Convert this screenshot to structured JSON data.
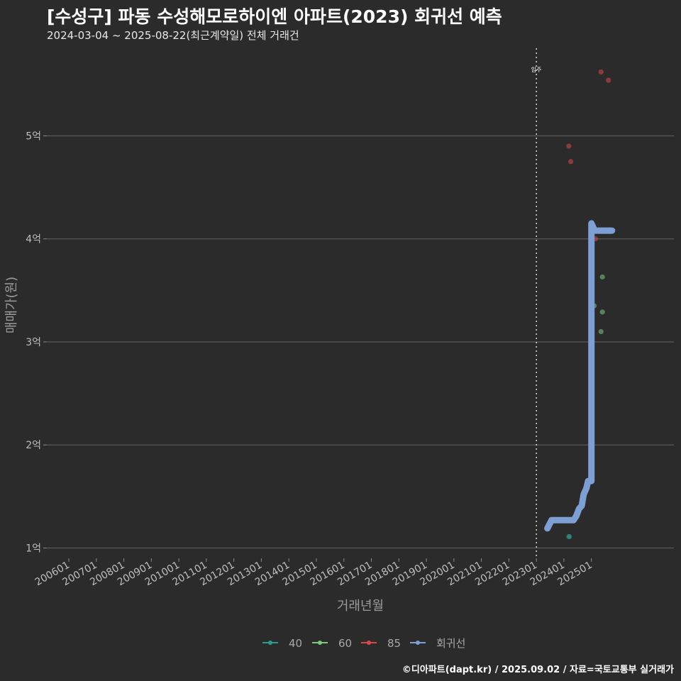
{
  "chart_data": {
    "type": "scatter",
    "title": "[수성구] 파동 수성해모로하이엔 아파트(2023) 회귀선 예측",
    "subtitle": "2024-03-04 ~ 2025-08-22(최근계약일) 전체 거래건",
    "xlabel": "거래년월",
    "ylabel": "매매가(원)",
    "y_ticks": [
      {
        "value": 1,
        "label": "1억"
      },
      {
        "value": 2,
        "label": "2억"
      },
      {
        "value": 3,
        "label": "3억"
      },
      {
        "value": 4,
        "label": "4억"
      },
      {
        "value": 5,
        "label": "5억"
      }
    ],
    "ylim": [
      0.9,
      5.85
    ],
    "x_ticks": [
      "200601",
      "200701",
      "200801",
      "200901",
      "201001",
      "201101",
      "201201",
      "201301",
      "201401",
      "201501",
      "201601",
      "201701",
      "201801",
      "201901",
      "202001",
      "202101",
      "202201",
      "202301",
      "202401",
      "202501"
    ],
    "xlim": [
      2005.2,
      2028.0
    ],
    "grid": "horizontal",
    "legend_position": "bottom",
    "annotation": {
      "x": 2023.0,
      "label": "입주",
      "style": "dotted vertical line"
    },
    "series": [
      {
        "name": "40",
        "color": "#2a9d8f",
        "points": [
          [
            2024.18,
            1.11
          ],
          [
            2024.2,
            1.11
          ]
        ]
      },
      {
        "name": "60",
        "color": "#7fc97f",
        "points": [
          [
            2025.1,
            3.35
          ],
          [
            2025.35,
            3.1
          ],
          [
            2025.4,
            3.63
          ],
          [
            2025.4,
            3.29
          ]
        ]
      },
      {
        "name": "85",
        "color": "#e0474c",
        "points": [
          [
            2024.18,
            4.9
          ],
          [
            2024.25,
            4.75
          ],
          [
            2025.15,
            4.0
          ],
          [
            2025.35,
            5.62
          ],
          [
            2025.62,
            5.54
          ]
        ]
      },
      {
        "name": "회귀선",
        "color": "#7d9fd3",
        "type": "line",
        "points": [
          [
            2023.4,
            1.19
          ],
          [
            2023.55,
            1.27
          ],
          [
            2024.35,
            1.27
          ],
          [
            2024.45,
            1.31
          ],
          [
            2024.55,
            1.38
          ],
          [
            2024.65,
            1.41
          ],
          [
            2024.72,
            1.52
          ],
          [
            2024.82,
            1.58
          ],
          [
            2024.88,
            1.65
          ],
          [
            2025.0,
            1.65
          ],
          [
            2025.0,
            4.15
          ],
          [
            2025.12,
            4.08
          ],
          [
            2025.75,
            4.08
          ]
        ]
      }
    ]
  },
  "credit": "©디아파트(dapt.kr) / 2025.09.02 / 자료=국토교통부 실거래가"
}
